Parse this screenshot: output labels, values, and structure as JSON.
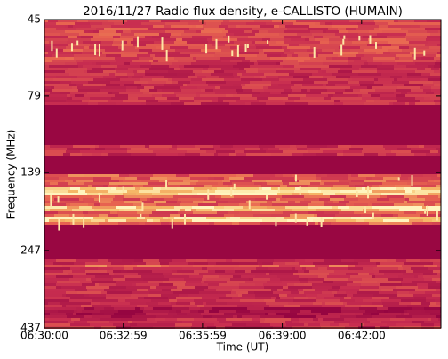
{
  "chart_data": {
    "type": "spectrogram",
    "title": "2016/11/27  Radio flux density, e-CALLISTO (HUMAIN)",
    "xlabel": "Time (UT)",
    "ylabel": "Frequency (MHz)",
    "xlim": [
      "06:30:00",
      "06:45:00"
    ],
    "xticks": [
      "06:30:00",
      "06:32:59",
      "06:35:59",
      "06:39:00",
      "06:42:00"
    ],
    "ylim": [
      45,
      437
    ],
    "yticks": [
      45,
      79,
      139,
      247,
      437
    ],
    "yscale": "log",
    "yinverted": true
  }
}
